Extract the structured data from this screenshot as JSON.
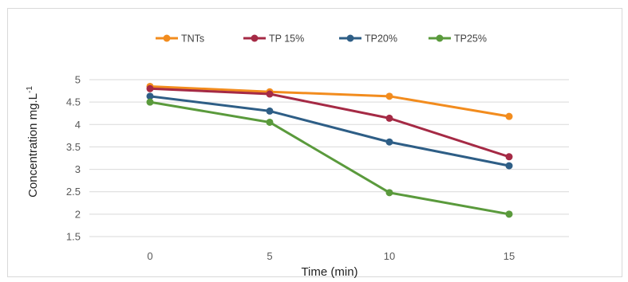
{
  "chart_data": {
    "type": "line",
    "title": "",
    "xlabel": "Time (min)",
    "ylabel": "Concentration mg.L",
    "ylabel_superscript": "-1",
    "x": [
      0,
      5,
      10,
      15
    ],
    "x_tick_labels": [
      "0",
      "5",
      "10",
      "15"
    ],
    "y_tick_labels": [
      "5",
      "4.5",
      "4",
      "3.5",
      "3",
      "2.5",
      "2",
      "1.5"
    ],
    "ylim": [
      1.5,
      5
    ],
    "grid": true,
    "legend_position": "top",
    "series": [
      {
        "name": "TNTs",
        "color": "#F28C1E",
        "values": [
          4.85,
          4.73,
          4.63,
          4.18
        ]
      },
      {
        "name": "TP 15%",
        "color": "#A52A45",
        "values": [
          4.8,
          4.68,
          4.14,
          3.28
        ]
      },
      {
        "name": "TP20%",
        "color": "#2E5E86",
        "values": [
          4.63,
          4.3,
          3.61,
          3.08
        ]
      },
      {
        "name": "TP25%",
        "color": "#5A9A3C",
        "values": [
          4.5,
          4.05,
          2.48,
          2.0
        ]
      }
    ]
  }
}
